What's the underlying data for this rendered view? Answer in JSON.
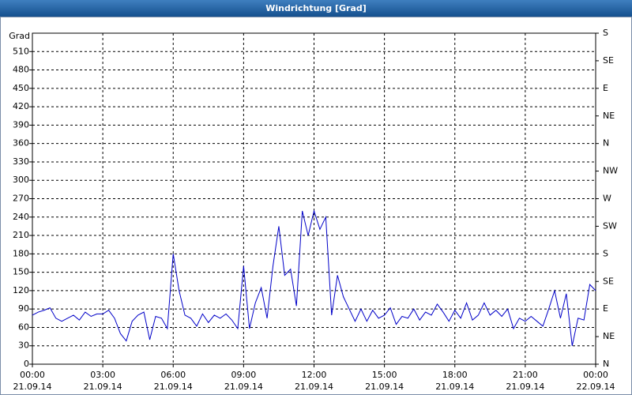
{
  "chart_data": {
    "type": "line",
    "title": "Windrichtung [Grad]",
    "y_label": "Grad",
    "color": "#0000c8",
    "grid": true,
    "x": [
      0,
      0.25,
      0.5,
      0.75,
      1,
      1.25,
      1.5,
      1.75,
      2,
      2.25,
      2.5,
      2.75,
      3,
      3.25,
      3.5,
      3.75,
      4,
      4.25,
      4.5,
      4.75,
      5,
      5.25,
      5.5,
      5.75,
      6,
      6.25,
      6.5,
      6.75,
      7,
      7.25,
      7.5,
      7.75,
      8,
      8.25,
      8.5,
      8.75,
      9,
      9.25,
      9.5,
      9.75,
      10,
      10.25,
      10.5,
      10.75,
      11,
      11.25,
      11.5,
      11.75,
      12,
      12.25,
      12.5,
      12.75,
      13,
      13.25,
      13.5,
      13.75,
      14,
      14.25,
      14.5,
      14.75,
      15,
      15.25,
      15.5,
      15.75,
      16,
      16.25,
      16.5,
      16.75,
      17,
      17.25,
      17.5,
      17.75,
      18,
      18.25,
      18.5,
      18.75,
      19,
      19.25,
      19.5,
      19.75,
      20,
      20.25,
      20.5,
      20.75,
      21,
      21.25,
      21.5,
      21.75,
      22,
      22.25,
      22.5,
      22.75,
      23,
      23.25,
      23.5,
      23.75,
      24
    ],
    "values": [
      80,
      85,
      88,
      92,
      75,
      70,
      75,
      80,
      72,
      85,
      78,
      82,
      82,
      88,
      75,
      50,
      38,
      70,
      80,
      85,
      40,
      78,
      75,
      58,
      180,
      120,
      80,
      75,
      62,
      82,
      68,
      80,
      75,
      82,
      72,
      58,
      160,
      58,
      100,
      125,
      75,
      160,
      225,
      145,
      155,
      95,
      250,
      210,
      250,
      220,
      240,
      80,
      145,
      110,
      90,
      70,
      90,
      70,
      88,
      75,
      80,
      92,
      65,
      78,
      75,
      90,
      72,
      85,
      80,
      98,
      85,
      70,
      88,
      75,
      100,
      72,
      80,
      100,
      80,
      88,
      78,
      90,
      58,
      75,
      70,
      78,
      70,
      62,
      90,
      120,
      75,
      115,
      30,
      75,
      72,
      130,
      120
    ],
    "xlim": [
      0,
      24
    ],
    "xticks": [
      {
        "value": 0,
        "label": "00:00"
      },
      {
        "value": 3,
        "label": "03:00"
      },
      {
        "value": 6,
        "label": "06:00"
      },
      {
        "value": 9,
        "label": "09:00"
      },
      {
        "value": 12,
        "label": "12:00"
      },
      {
        "value": 15,
        "label": "15:00"
      },
      {
        "value": 18,
        "label": "18:00"
      },
      {
        "value": 21,
        "label": "21:00"
      },
      {
        "value": 24,
        "label": "00:00"
      }
    ],
    "xtick_dates": [
      "21.09.14",
      "21.09.14",
      "21.09.14",
      "21.09.14",
      "21.09.14",
      "21.09.14",
      "21.09.14",
      "21.09.14",
      "22.09.14"
    ],
    "ylim": [
      0,
      540
    ],
    "yticks": [
      0,
      30,
      60,
      90,
      120,
      150,
      180,
      210,
      240,
      270,
      300,
      330,
      360,
      390,
      420,
      450,
      480,
      510
    ],
    "y2lim": [
      0,
      540
    ],
    "y2ticks": [
      {
        "value": 0,
        "label": "N"
      },
      {
        "value": 45,
        "label": "NE"
      },
      {
        "value": 90,
        "label": "E"
      },
      {
        "value": 135,
        "label": "SE"
      },
      {
        "value": 180,
        "label": "S"
      },
      {
        "value": 225,
        "label": "SW"
      },
      {
        "value": 270,
        "label": "W"
      },
      {
        "value": 315,
        "label": "NW"
      },
      {
        "value": 360,
        "label": "N"
      },
      {
        "value": 405,
        "label": "NE"
      },
      {
        "value": 450,
        "label": "E"
      },
      {
        "value": 495,
        "label": "SE"
      },
      {
        "value": 540,
        "label": "S"
      }
    ]
  }
}
